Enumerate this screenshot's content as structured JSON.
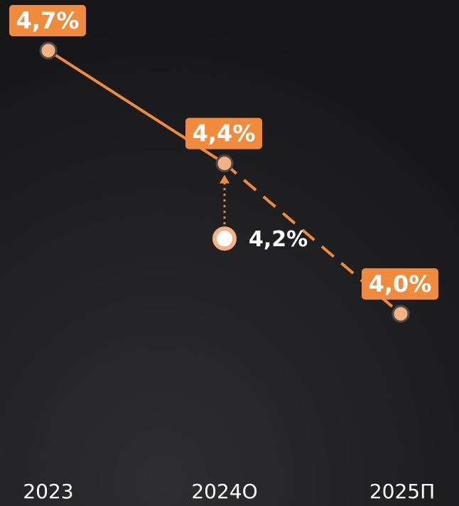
{
  "chart_data": {
    "type": "line",
    "categories": [
      "2023",
      "2024О",
      "2025П"
    ],
    "values": [
      4.7,
      4.4,
      4.0
    ],
    "value_labels": [
      "4,7%",
      "4,4%",
      "4,0%"
    ],
    "color": "#f08a3c",
    "point_color": "#f4b184",
    "dashed_from": 1,
    "prior_forecast": {
      "category": 1,
      "value": 4.2,
      "label": "4,2%"
    }
  }
}
